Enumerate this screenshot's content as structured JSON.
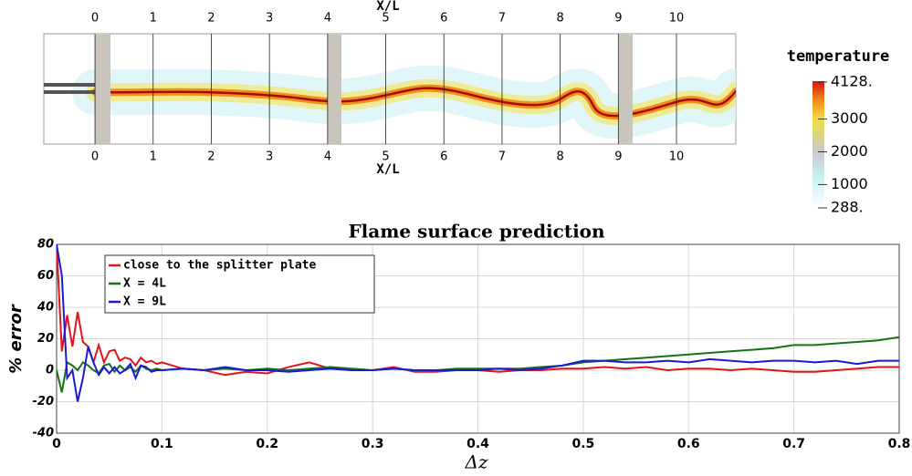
{
  "chart_data": [
    {
      "type": "field",
      "xlabel": "X/L",
      "xlim": [
        -0.88,
        11.02
      ],
      "xticks": [
        0,
        1,
        2,
        3,
        4,
        5,
        6,
        7,
        8,
        9,
        10
      ],
      "colorbar": {
        "title": "temperature",
        "lim": [
          288,
          4128
        ],
        "ticks": [
          {
            "value": 4128,
            "label": "4128."
          },
          3000,
          2000,
          1000,
          {
            "value": 288,
            "label": "288."
          }
        ]
      }
    },
    {
      "type": "line",
      "title": "Flame surface prediction",
      "xlabel": "Δz",
      "ylabel": "% error",
      "xlim": [
        0,
        0.8
      ],
      "ylim": [
        -40,
        80
      ],
      "xticks": [
        0,
        0.1,
        0.2,
        0.3,
        0.4,
        0.5,
        0.6,
        0.7,
        0.8
      ],
      "yticks": [
        -40,
        -20,
        0,
        20,
        40,
        60,
        80
      ],
      "grid": true,
      "legend": "upper left",
      "x": [
        0,
        0.005,
        0.01,
        0.015,
        0.02,
        0.025,
        0.03,
        0.035,
        0.04,
        0.045,
        0.05,
        0.055,
        0.06,
        0.065,
        0.07,
        0.075,
        0.08,
        0.085,
        0.09,
        0.095,
        0.1,
        0.12,
        0.14,
        0.16,
        0.18,
        0.2,
        0.22,
        0.24,
        0.26,
        0.28,
        0.3,
        0.32,
        0.34,
        0.36,
        0.38,
        0.4,
        0.42,
        0.44,
        0.46,
        0.48,
        0.5,
        0.52,
        0.54,
        0.56,
        0.58,
        0.6,
        0.62,
        0.64,
        0.66,
        0.68,
        0.7,
        0.72,
        0.74,
        0.76,
        0.78,
        0.8
      ],
      "series": [
        {
          "name": "close to the splitter plate",
          "color": "#e0161b",
          "values": [
            80,
            12,
            35,
            15,
            37,
            18,
            15,
            5,
            16,
            5,
            12,
            13,
            6,
            8,
            7,
            3,
            8,
            5,
            6,
            4,
            5,
            1,
            0,
            -3,
            -1,
            -2,
            2,
            5,
            1,
            0,
            0,
            2,
            -1,
            -1,
            0,
            0,
            -1,
            0,
            0,
            1,
            1,
            2,
            1,
            2,
            0,
            1,
            1,
            0,
            1,
            0,
            -1,
            -1,
            0,
            1,
            2,
            2
          ]
        },
        {
          "name": "X = 4L",
          "color": "#177217",
          "values": [
            0,
            -14,
            5,
            3,
            0,
            5,
            3,
            0,
            -2,
            3,
            4,
            -1,
            3,
            0,
            2,
            -1,
            3,
            1,
            0,
            1,
            0,
            1,
            0,
            1,
            0,
            1,
            0,
            1,
            2,
            1,
            0,
            1,
            0,
            0,
            1,
            1,
            1,
            1,
            2,
            3,
            5,
            6,
            7,
            8,
            9,
            10,
            11,
            12,
            13,
            14,
            16,
            16,
            17,
            18,
            19,
            21
          ]
        },
        {
          "name": "X = 9L",
          "color": "#1a1ad6",
          "values": [
            80,
            60,
            -5,
            0,
            -20,
            -5,
            15,
            5,
            -3,
            2,
            -2,
            2,
            -2,
            0,
            4,
            -5,
            3,
            2,
            -1,
            0,
            0,
            1,
            0,
            2,
            0,
            0,
            -1,
            0,
            1,
            0,
            0,
            1,
            0,
            0,
            0,
            0,
            1,
            0,
            1,
            3,
            6,
            6,
            5,
            5,
            6,
            5,
            7,
            6,
            5,
            6,
            6,
            5,
            6,
            4,
            6,
            6
          ]
        }
      ]
    }
  ]
}
